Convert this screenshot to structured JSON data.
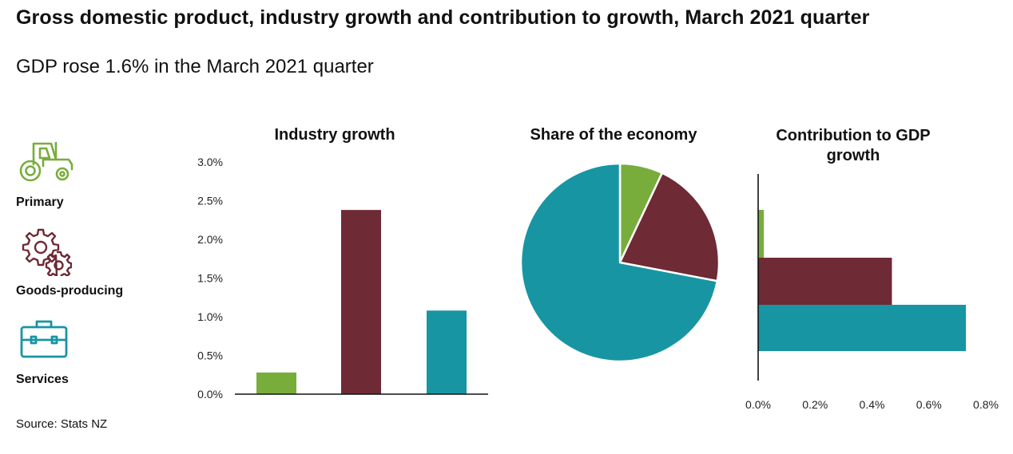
{
  "title": "Gross domestic product, industry growth and contribution to growth, March 2021 quarter",
  "subtitle": "GDP rose 1.6% in the March 2021 quarter",
  "source": "Source: Stats NZ",
  "legend": [
    {
      "label": "Primary",
      "icon": "tractor-icon",
      "color": "#78ad3c"
    },
    {
      "label": "Goods-producing",
      "icon": "gears-icon",
      "color": "#6e2a35"
    },
    {
      "label": "Services",
      "icon": "briefcase-icon",
      "color": "#1895a3"
    }
  ],
  "chart_data": [
    {
      "type": "bar",
      "title": "Industry growth",
      "categories": [
        "Primary",
        "Goods-producing",
        "Services"
      ],
      "values": [
        0.28,
        2.38,
        1.08
      ],
      "colors": [
        "#78ad3c",
        "#6e2a35",
        "#1895a3"
      ],
      "ylim": [
        0,
        3.0
      ],
      "yticks": [
        "0.0%",
        "0.5%",
        "1.0%",
        "1.5%",
        "2.0%",
        "2.5%",
        "3.0%"
      ]
    },
    {
      "type": "pie",
      "title": "Share of the economy",
      "categories": [
        "Primary",
        "Goods-producing",
        "Services"
      ],
      "values": [
        7,
        21,
        72
      ],
      "colors": [
        "#78ad3c",
        "#6e2a35",
        "#1895a3"
      ]
    },
    {
      "type": "bar",
      "orientation": "horizontal",
      "title_lines": [
        "Contribution to GDP",
        "growth"
      ],
      "categories": [
        "Primary",
        "Goods-producing",
        "Services"
      ],
      "values": [
        0.02,
        0.47,
        0.73
      ],
      "colors": [
        "#78ad3c",
        "#6e2a35",
        "#1895a3"
      ],
      "xlim": [
        0,
        0.8
      ],
      "xticks": [
        "0.0%",
        "0.2%",
        "0.4%",
        "0.6%",
        "0.8%"
      ]
    }
  ]
}
